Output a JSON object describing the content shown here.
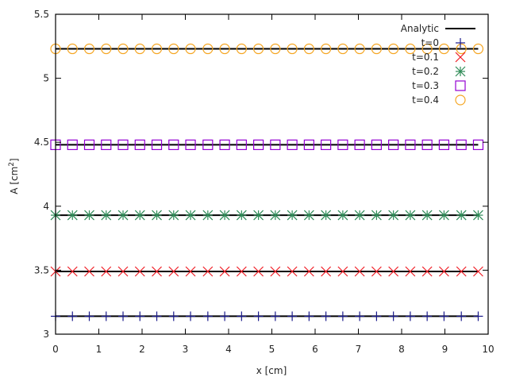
{
  "chart_data": {
    "type": "line",
    "title": "",
    "xlabel": "x [cm]",
    "ylabel": "A [cm2]",
    "ylabel_main": "A [cm",
    "ylabel_sup": "2",
    "ylabel_close": "]",
    "xlim": [
      0,
      10
    ],
    "ylim": [
      3,
      5.5
    ],
    "xticks": [
      "0",
      "1",
      "2",
      "3",
      "4",
      "5",
      "6",
      "7",
      "8",
      "9",
      "10"
    ],
    "yticks": [
      "3",
      "3.5",
      "4",
      "4.5",
      "5",
      "5.5"
    ],
    "grid": false,
    "legend_position": "top-right",
    "x_points": [
      0,
      0.39,
      0.78,
      1.17,
      1.56,
      1.95,
      2.34,
      2.73,
      3.12,
      3.52,
      3.91,
      4.3,
      4.69,
      5.08,
      5.47,
      5.86,
      6.25,
      6.64,
      7.03,
      7.42,
      7.81,
      8.2,
      8.59,
      8.98,
      9.38,
      9.77
    ],
    "analytic": {
      "name": "Analytic",
      "color": "#000000",
      "values": [
        3.14,
        3.49,
        3.93,
        4.48,
        5.23
      ]
    },
    "series": [
      {
        "name": "t=0",
        "marker": "plus",
        "color": "#1a1a8c",
        "value": 3.14
      },
      {
        "name": "t=0.1",
        "marker": "cross",
        "color": "#ee1c24",
        "value": 3.49
      },
      {
        "name": "t=0.2",
        "marker": "star",
        "color": "#2e8b57",
        "value": 3.93
      },
      {
        "name": "t=0.3",
        "marker": "square",
        "color": "#9400d3",
        "value": 4.48
      },
      {
        "name": "t=0.4",
        "marker": "circle",
        "color": "#f5a623",
        "value": 5.23
      }
    ]
  }
}
